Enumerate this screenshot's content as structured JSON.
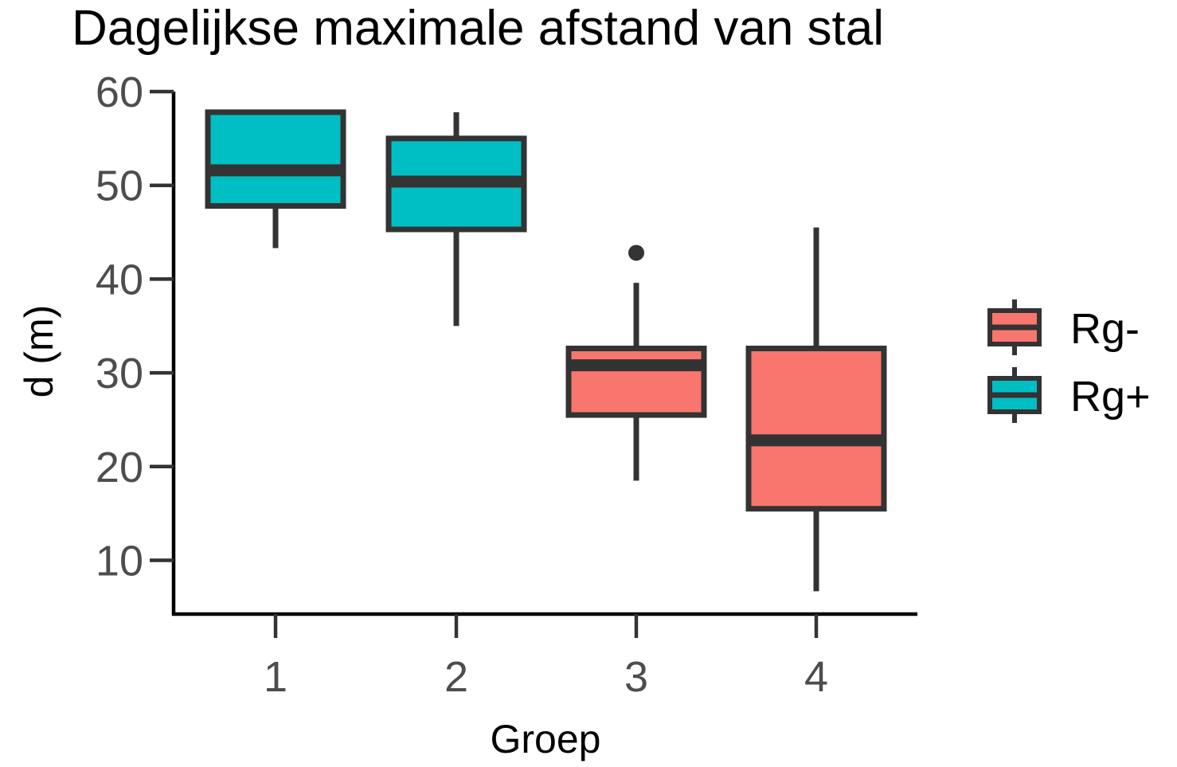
{
  "chart_data": {
    "type": "boxplot",
    "title": "Dagelijkse maximale afstand van stal",
    "xlabel": "Groep",
    "ylabel": "d (m)",
    "ylim": [
      4.5,
      62
    ],
    "yticks": [
      10,
      20,
      30,
      40,
      50,
      60
    ],
    "categories": [
      "1",
      "2",
      "3",
      "4"
    ],
    "grid": false,
    "legend_position": "right",
    "legend": [
      {
        "name": "Rg-",
        "color": "#f8766d"
      },
      {
        "name": "Rg+",
        "color": "#00bfc4"
      }
    ],
    "boxes": [
      {
        "category": "1",
        "group": "Rg+",
        "whisker_low": 43.3,
        "q1": 47.8,
        "median": 51.6,
        "q3": 57.8,
        "whisker_high": 57.8,
        "outliers": []
      },
      {
        "category": "2",
        "group": "Rg+",
        "whisker_low": 35.0,
        "q1": 45.3,
        "median": 50.4,
        "q3": 55.0,
        "whisker_high": 57.8,
        "outliers": []
      },
      {
        "category": "3",
        "group": "Rg-",
        "whisker_low": 18.5,
        "q1": 25.5,
        "median": 30.8,
        "q3": 32.6,
        "whisker_high": 39.6,
        "outliers": [
          42.8
        ]
      },
      {
        "category": "4",
        "group": "Rg-",
        "whisker_low": 6.7,
        "q1": 15.5,
        "median": 22.8,
        "q3": 32.6,
        "whisker_high": 45.5,
        "outliers": []
      }
    ]
  },
  "colors": {
    "outline": "#333333",
    "axis": "#000000",
    "tick_text": "#4d4d4d",
    "title_text": "#000000"
  }
}
